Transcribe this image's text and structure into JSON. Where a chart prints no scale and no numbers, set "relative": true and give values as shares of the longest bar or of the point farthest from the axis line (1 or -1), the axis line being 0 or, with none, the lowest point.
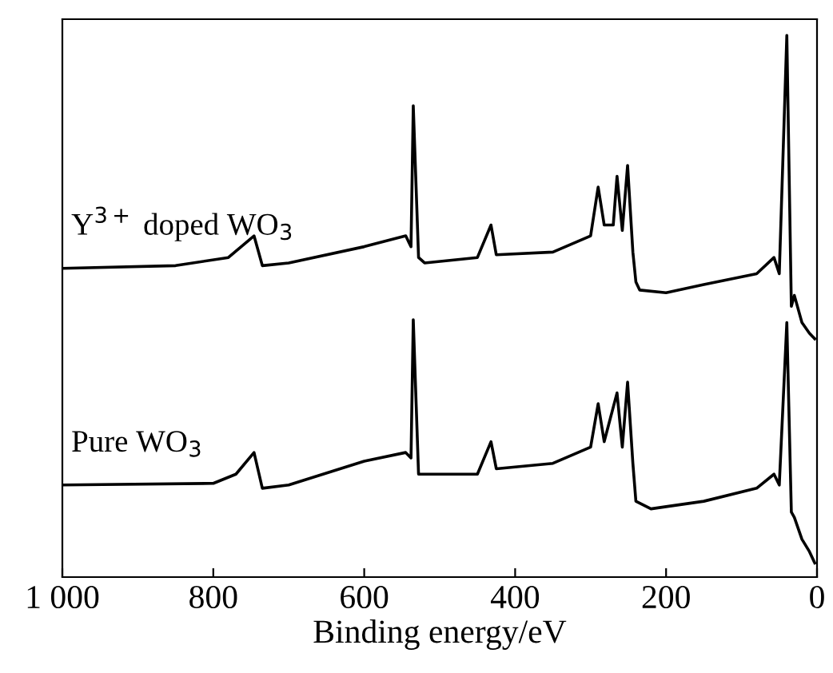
{
  "chart_data": {
    "type": "line",
    "xlabel": "Binding energy/eV",
    "relative": true,
    "xlim": [
      1000,
      0
    ],
    "xticks": [
      {
        "value": 1000,
        "label": "1 000"
      },
      800,
      600,
      400,
      200,
      0
    ],
    "tick_labels": "x",
    "grid": false,
    "series": [
      {
        "name": "Y$^{3+}$ doped WO$_{3}$",
        "color": "#000000",
        "x": [
          1000,
          850,
          780,
          746,
          735,
          700,
          600,
          545,
          538,
          535,
          528,
          520,
          450,
          432,
          425,
          350,
          300,
          290,
          282,
          270,
          265,
          258,
          251,
          244,
          240,
          235,
          200,
          150,
          80,
          57,
          50,
          40,
          34,
          30,
          20,
          10,
          3
        ],
        "values": [
          0.57,
          0.575,
          0.59,
          0.63,
          0.575,
          0.58,
          0.61,
          0.63,
          0.61,
          0.87,
          0.59,
          0.58,
          0.59,
          0.65,
          0.595,
          0.6,
          0.63,
          0.72,
          0.65,
          0.65,
          0.74,
          0.64,
          0.76,
          0.6,
          0.545,
          0.53,
          0.525,
          0.54,
          0.56,
          0.59,
          0.56,
          1.0,
          0.5,
          0.52,
          0.47,
          0.45,
          0.44
        ]
      },
      {
        "name": "Pure WO$_{3}$",
        "color": "#000000",
        "x": [
          1000,
          800,
          770,
          746,
          735,
          700,
          600,
          545,
          538,
          535,
          528,
          500,
          450,
          432,
          425,
          350,
          300,
          290,
          282,
          265,
          258,
          251,
          244,
          240,
          220,
          200,
          150,
          80,
          57,
          50,
          40,
          34,
          30,
          20,
          10,
          3
        ],
        "values": [
          0.17,
          0.173,
          0.19,
          0.23,
          0.164,
          0.17,
          0.214,
          0.23,
          0.22,
          0.475,
          0.19,
          0.19,
          0.19,
          0.25,
          0.2,
          0.21,
          0.24,
          0.32,
          0.25,
          0.34,
          0.24,
          0.36,
          0.21,
          0.14,
          0.126,
          0.13,
          0.14,
          0.164,
          0.19,
          0.17,
          0.47,
          0.12,
          0.11,
          0.07,
          0.047,
          0.026
        ]
      }
    ]
  }
}
